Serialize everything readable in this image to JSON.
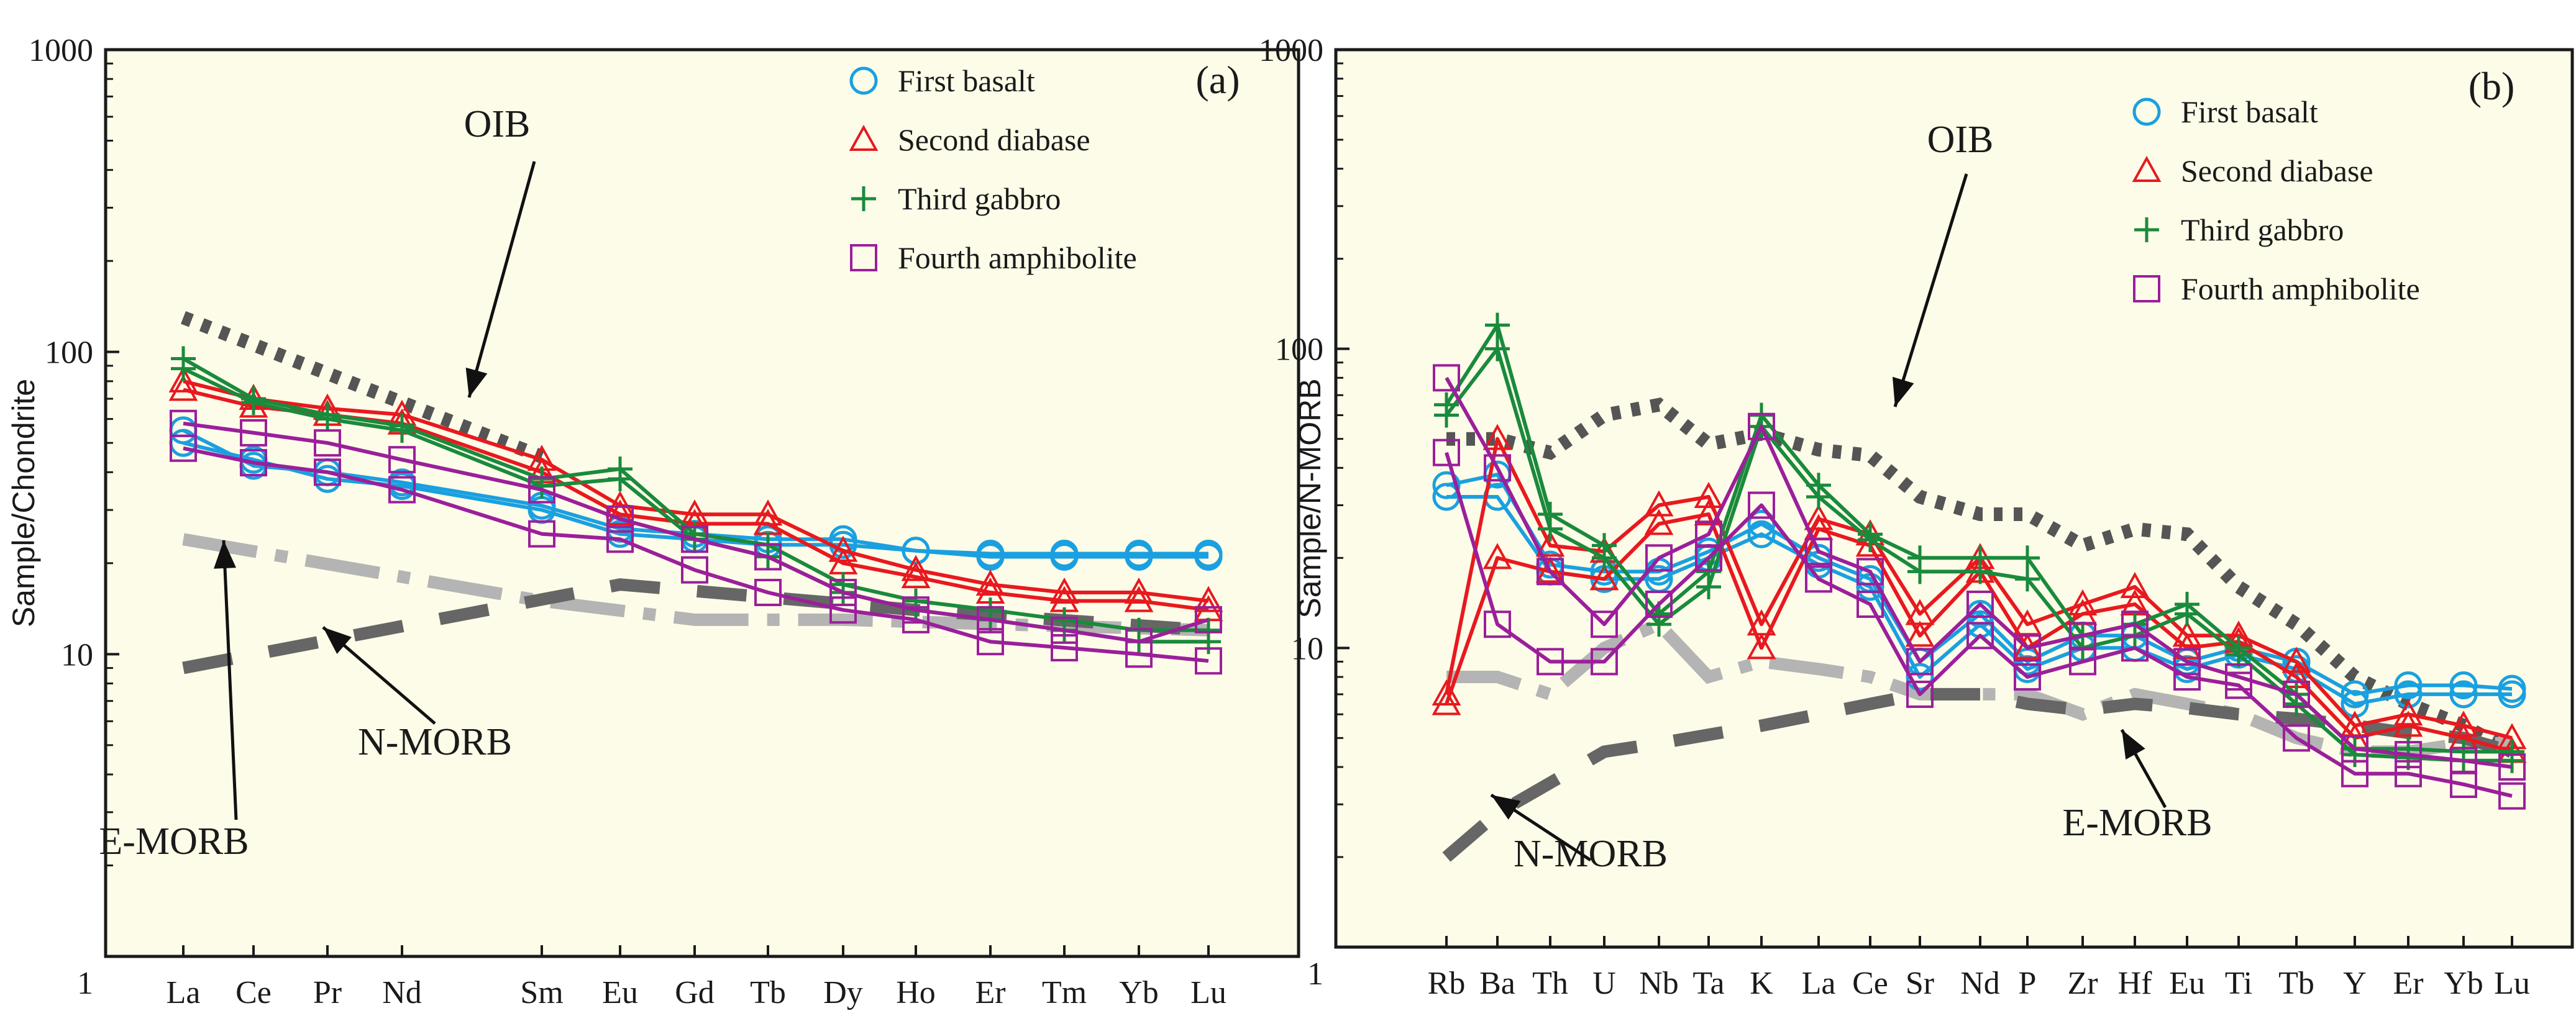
{
  "chart_data": [
    {
      "type": "line",
      "panel_label": "(a)",
      "ylabel": "Sample/Chondrite",
      "yscale": "log",
      "ylim": [
        1,
        1000
      ],
      "yticks": [
        "1000",
        "100",
        "10",
        "1"
      ],
      "yticks_values": [
        1000,
        100,
        10,
        1
      ],
      "categories": [
        "La",
        "Ce",
        "Pr",
        "Nd",
        "",
        "Sm",
        "Eu",
        "Gd",
        "Tb",
        "Dy",
        "Ho",
        "Er",
        "Tm",
        "Yb",
        "Lu"
      ],
      "legend": [
        "First basalt",
        "Second diabase",
        "Third gabbro",
        "Fourth amphibolite"
      ],
      "annotations": {
        "oib": "OIB",
        "nmorb": "N-MORB",
        "emorb": "E-MORB"
      },
      "reference_lines": [
        {
          "name": "OIB",
          "values": [
            130,
            null,
            null,
            null,
            null,
            45,
            null,
            null,
            null,
            null,
            null,
            null,
            null,
            null,
            null
          ]
        },
        {
          "name": "E-MORB",
          "values": [
            24,
            null,
            null,
            null,
            null,
            15,
            null,
            13,
            null,
            13,
            null,
            null,
            null,
            null,
            12
          ]
        },
        {
          "name": "N-MORB",
          "values": [
            9,
            null,
            null,
            null,
            null,
            null,
            17,
            null,
            null,
            null,
            14,
            null,
            null,
            null,
            12
          ]
        }
      ],
      "series": [
        {
          "name": "First basalt",
          "color": "#1aa0e0",
          "marker": "circle",
          "values": [
            [
              55,
              42,
              40,
              37,
              null,
              31,
              26,
              25,
              24,
              24,
              22,
              21.5,
              21.5,
              21.5,
              21.5
            ],
            [
              50,
              44,
              38,
              36,
              null,
              30,
              25,
              24,
              23,
              23,
              22,
              21,
              21,
              21,
              21
            ]
          ]
        },
        {
          "name": "Second diabase",
          "color": "#e8191f",
          "marker": "triangle",
          "values": [
            [
              80,
              70,
              65,
              62,
              null,
              44,
              31,
              29,
              29,
              22,
              19,
              17,
              16,
              16,
              15
            ],
            [
              75,
              66,
              62,
              58,
              null,
              40,
              29,
              27,
              27,
              20,
              18,
              16,
              15,
              15,
              14
            ]
          ]
        },
        {
          "name": "Third gabbro",
          "color": "#1a8a3c",
          "marker": "plus",
          "values": [
            [
              95,
              70,
              62,
              57,
              null,
              38,
              41,
              25,
              23,
              17,
              15,
              14,
              13,
              12,
              12
            ],
            [
              88,
              68,
              60,
              55,
              null,
              36,
              38,
              24,
              21,
              16,
              14,
              13,
              12,
              11,
              11
            ]
          ]
        },
        {
          "name": "Fourth amphibolite",
          "color": "#9b1f9b",
          "marker": "square",
          "values": [
            [
              58,
              54,
              50,
              44,
              null,
              35,
              28,
              24,
              21,
              16,
              14,
              13,
              12,
              11,
              13
            ],
            [
              48,
              43,
              40,
              35,
              null,
              25,
              24,
              19,
              16,
              14,
              13,
              11,
              10.5,
              10,
              9.5
            ]
          ]
        }
      ]
    },
    {
      "type": "line",
      "panel_label": "(b)",
      "ylabel": "Sample/N-MORB",
      "yscale": "log",
      "ylim": [
        1,
        1000
      ],
      "yticks": [
        "1000",
        "100",
        "10",
        "1"
      ],
      "yticks_values": [
        1000,
        100,
        10,
        1
      ],
      "categories": [
        "Rb",
        "Ba",
        "Th",
        "U",
        "Nb",
        "Ta",
        "K",
        "La",
        "Ce",
        "Sr",
        "Nd",
        "P",
        "Zr",
        "Hf",
        "Eu",
        "Ti",
        "Tb",
        "Y",
        "Er",
        "Yb",
        "Lu"
      ],
      "legend": [
        "First basalt",
        "Second diabase",
        "Third gabbro",
        "Fourth amphibolite"
      ],
      "annotations": {
        "oib": "OIB",
        "nmorb": "N-MORB",
        "emorb": "E-MORB"
      },
      "reference_lines": [
        {
          "name": "OIB",
          "values": [
            50,
            50,
            45,
            60,
            65,
            48,
            52,
            46,
            44,
            32,
            28,
            28,
            22,
            25,
            24,
            16,
            12,
            8,
            6.5,
            5.5,
            4.5
          ]
        },
        {
          "name": "E-MORB",
          "values": [
            8,
            8,
            7,
            10,
            12,
            8,
            9,
            8.5,
            8,
            7,
            7,
            7,
            6,
            7,
            6.5,
            6,
            5,
            4.5,
            4.5,
            4.8,
            4.8
          ]
        },
        {
          "name": "N-MORB",
          "values": [
            2,
            2.8,
            null,
            4.5,
            4.8,
            null,
            5.5,
            6,
            6.5,
            7,
            7,
            6.5,
            6.2,
            6.5,
            6.3,
            6,
            5.8,
            5.5,
            5.2,
            5,
            4.5
          ]
        }
      ],
      "series": [
        {
          "name": "First basalt",
          "color": "#1aa0e0",
          "marker": "circle",
          "values": [
            [
              35,
              38,
              19,
              18,
              18,
              21,
              26,
              20,
              17,
              9,
              13,
              9,
              11,
              11,
              9,
              10,
              9,
              7,
              7.5,
              7.5,
              7.3
            ],
            [
              32,
              32,
              18,
              17,
              17,
              20,
              24,
              19,
              16,
              8,
              12,
              8.5,
              10,
              10,
              8.5,
              9.5,
              8.5,
              6.5,
              7,
              7,
              7
            ]
          ]
        },
        {
          "name": "Second diabase",
          "color": "#e8191f",
          "marker": "triangle",
          "values": [
            [
              7,
              50,
              22,
              21,
              30,
              32,
              12,
              27,
              24,
              13,
              20,
              12,
              14,
              16,
              11,
              11,
              9,
              5.5,
              6,
              5.5,
              5
            ],
            [
              6.5,
              20,
              18,
              17,
              26,
              28,
              10,
              25,
              22,
              11,
              18,
              10,
              13,
              14,
              10,
              10.5,
              8,
              5,
              5.5,
              5,
              4.5
            ]
          ]
        },
        {
          "name": "Third gabbro",
          "color": "#1a8a3c",
          "marker": "plus",
          "values": [
            [
              65,
              120,
              28,
              22,
              13,
              18,
              60,
              35,
              24,
              20,
              20,
              20,
              11,
              12,
              14,
              10,
              7,
              4.6,
              4.6,
              4.5,
              4.5
            ],
            [
              60,
              100,
              25,
              20,
              12,
              16,
              55,
              32,
              23,
              18,
              18,
              17,
              10,
              11,
              13,
              9.5,
              6.5,
              4.4,
              4.3,
              4.2,
              4.2
            ]
          ]
        },
        {
          "name": "Fourth amphibolite",
          "color": "#9b1f9b",
          "marker": "square",
          "values": [
            [
              80,
              40,
              18,
              12,
              20,
              24,
              55,
              21,
              18,
              9,
              14,
              10,
              11,
              12,
              9,
              8,
              7,
              4.6,
              4.4,
              4.2,
              4
            ],
            [
              45,
              12,
              9,
              9,
              14,
              20,
              30,
              17,
              14,
              7,
              11,
              8,
              9,
              10,
              8,
              7.5,
              5,
              3.8,
              3.8,
              3.5,
              3.2
            ]
          ]
        }
      ]
    }
  ]
}
